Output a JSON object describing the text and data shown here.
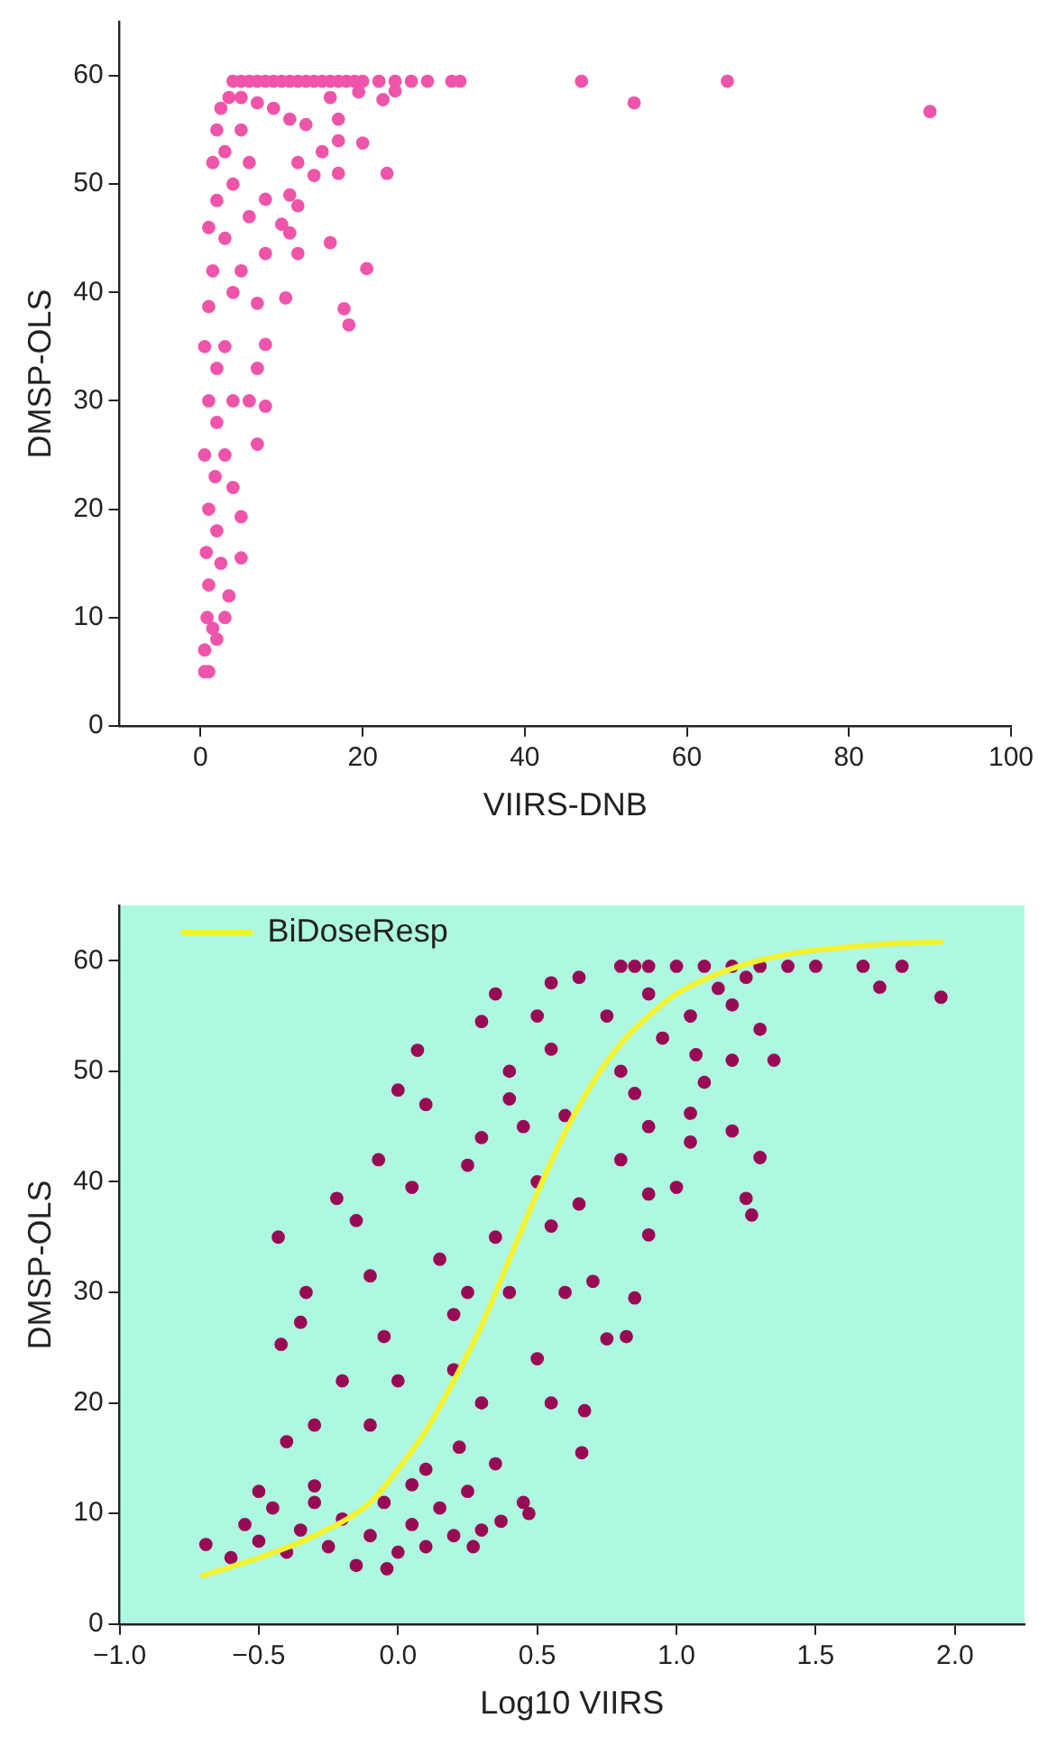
{
  "chart_data": [
    {
      "type": "scatter",
      "xlabel": "VIIRS-DNB",
      "ylabel": "DMSP-OLS",
      "xlim": [
        -10,
        100
      ],
      "ylim": [
        0,
        65
      ],
      "xticks": [
        0,
        20,
        40,
        60,
        80,
        100
      ],
      "yticks": [
        0,
        10,
        20,
        30,
        40,
        50,
        60
      ],
      "grid": false,
      "legend": false,
      "marker": "circle",
      "series": [
        {
          "color": "#ee55aa",
          "x": [
            4,
            5,
            6,
            7,
            8,
            9,
            10,
            11,
            12,
            13,
            14,
            15,
            16,
            17,
            18,
            19,
            20,
            22,
            24,
            26,
            28,
            31,
            32,
            47,
            65,
            53.5,
            90,
            5,
            7,
            9,
            11,
            13,
            16,
            17,
            19.5,
            22.5,
            24,
            15,
            17,
            20,
            12,
            14,
            17,
            23,
            11,
            12,
            10,
            11,
            16,
            12,
            20.5,
            10.5,
            17.7,
            18.3,
            8,
            8,
            7,
            8,
            7,
            8,
            7,
            6,
            5,
            5,
            4,
            3.5,
            3,
            2,
            1,
            0.5,
            0.5,
            0.8,
            1,
            0.7,
            1,
            0.5,
            1,
            0.5,
            1,
            1.5,
            1,
            2,
            1.5,
            2,
            2.5,
            3,
            3,
            4,
            5,
            4,
            3,
            2,
            3,
            2,
            2.5,
            1.5,
            4,
            5,
            6,
            6,
            3.5,
            1.8,
            2
          ],
          "values": [
            59.5,
            59.5,
            59.5,
            59.5,
            59.5,
            59.5,
            59.5,
            59.5,
            59.5,
            59.5,
            59.5,
            59.5,
            59.5,
            59.5,
            59.5,
            59.5,
            59.5,
            59.5,
            59.5,
            59.5,
            59.5,
            59.5,
            59.5,
            59.5,
            59.5,
            57.5,
            56.7,
            58,
            57.5,
            57,
            56,
            55.5,
            58,
            56,
            58.5,
            57.8,
            58.6,
            53,
            54,
            53.8,
            52,
            50.8,
            51,
            51,
            49,
            48,
            46.3,
            45.5,
            44.6,
            43.6,
            42.2,
            39.5,
            38.5,
            37,
            43.6,
            48.6,
            39,
            35.2,
            33,
            29.5,
            26,
            30,
            19.3,
            15.5,
            22,
            12,
            10,
            8,
            5,
            5,
            7,
            10,
            13,
            16,
            20,
            25,
            30,
            35,
            38.7,
            42,
            46,
            48.5,
            52,
            55,
            57,
            53,
            45,
            50,
            55,
            40,
            35,
            28,
            25,
            18,
            15,
            9,
            30,
            42,
            47,
            52,
            58,
            23,
            33
          ]
        }
      ]
    },
    {
      "type": "scatter",
      "xlabel": "Log10 VIIRS",
      "ylabel": "DMSP-OLS",
      "xlim": [
        -1,
        2.25
      ],
      "ylim": [
        0,
        65
      ],
      "xticks": [
        {
          "value": -1,
          "label": "−1.0"
        },
        {
          "value": -0.5,
          "label": "−0.5"
        },
        {
          "value": 0,
          "label": "0.0"
        },
        {
          "value": 0.5,
          "label": "0.5"
        },
        {
          "value": 1,
          "label": "1.0"
        },
        {
          "value": 1.5,
          "label": "1.5"
        },
        {
          "value": 2,
          "label": "2.0"
        }
      ],
      "yticks": [
        0,
        10,
        20,
        30,
        40,
        50,
        60
      ],
      "grid": false,
      "legend": "top left",
      "marker": "circle",
      "series": [
        {
          "color": "#990a55",
          "x": [
            -0.69,
            -0.6,
            -0.55,
            -0.5,
            -0.45,
            -0.4,
            -0.35,
            -0.3,
            -0.25,
            -0.2,
            -0.15,
            -0.1,
            -0.05,
            0,
            -0.04,
            0.05,
            0.1,
            0.15,
            0.2,
            0.25,
            0.27,
            0.3,
            -0.3,
            -0.5,
            0.05,
            -0.43,
            -0.42,
            -0.35,
            -0.33,
            -0.22,
            -0.15,
            -0.1,
            -0.05,
            0,
            0,
            0.07,
            0.1,
            -0.07,
            0.05,
            0.15,
            0.2,
            0.25,
            0.22,
            0.35,
            0.3,
            0.4,
            0.45,
            0.5,
            0.55,
            0.6,
            0.65,
            0.7,
            0.75,
            0.66,
            0.67,
            0.55,
            0.5,
            0.45,
            0.47,
            0.37,
            0.35,
            0.4,
            0.3,
            -0.3,
            -0.4,
            -0.2,
            -0.1,
            0.1,
            0.2,
            0.35,
            0.55,
            0.6,
            0.8,
            0.82,
            0.85,
            0.9,
            0.9,
            0.85,
            0.8,
            0.75,
            0.65,
            0.55,
            0.9,
            0.95,
            1,
            1.05,
            1.05,
            1.1,
            1.07,
            1.2,
            1.25,
            1.27,
            1.3,
            1.2,
            1.35,
            1.3,
            1.2,
            1.25,
            1.15,
            1.05,
            0.9,
            0.8,
            0.85,
            0.9,
            1,
            1.1,
            1.2,
            1.3,
            1.4,
            1.5,
            1.67,
            1.81,
            1.73,
            1.95,
            0.3,
            0.4,
            0.5,
            0.25
          ],
          "values": [
            7.2,
            6,
            9,
            7.5,
            10.5,
            6.5,
            8.5,
            11,
            7,
            9.5,
            5.3,
            8,
            11,
            6.5,
            5,
            9,
            7,
            10.5,
            8,
            12,
            7,
            8.5,
            12.5,
            12,
            12.6,
            35,
            25.3,
            27.3,
            30,
            38.5,
            36.5,
            31.5,
            26,
            22,
            48.3,
            51.9,
            47,
            42,
            39.5,
            33,
            28,
            41.5,
            16,
            57,
            54.5,
            50,
            45,
            55,
            52,
            46,
            38,
            31,
            25.8,
            15.5,
            19.3,
            20,
            24,
            11,
            10,
            9.3,
            14.5,
            30,
            20,
            18,
            16.5,
            22,
            18,
            14,
            23,
            35,
            36,
            30,
            42,
            26,
            29.5,
            35.2,
            38.9,
            48,
            50,
            55,
            58.5,
            58,
            45,
            53,
            39.5,
            43.6,
            46.2,
            49,
            51.5,
            44.6,
            38.5,
            37,
            42.2,
            51,
            51,
            53.8,
            56,
            58.5,
            57.5,
            55,
            57,
            59.5,
            59.5,
            59.5,
            59.5,
            59.5,
            59.5,
            59.5,
            59.5,
            59.5,
            59.5,
            59.5,
            57.6,
            56.7,
            44,
            47.5,
            40,
            30
          ]
        },
        {
          "type": "line",
          "name": "BiDoseResp",
          "color": "#f2f230",
          "marker": "none",
          "x": [
            -0.7,
            -0.5,
            -0.3,
            -0.1,
            0,
            0.1,
            0.2,
            0.3,
            0.4,
            0.5,
            0.6,
            0.7,
            0.8,
            0.9,
            1,
            1.2,
            1.4,
            1.6,
            1.8,
            1.95
          ],
          "values": [
            4.4,
            6,
            8,
            11,
            14,
            17.5,
            22,
            27,
            33,
            39,
            44.5,
            49,
            52.5,
            55,
            57,
            59.3,
            60.6,
            61.2,
            61.6,
            61.7
          ]
        }
      ]
    }
  ]
}
